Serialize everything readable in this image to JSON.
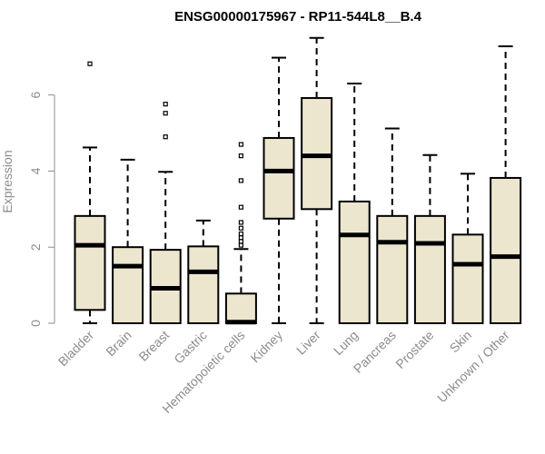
{
  "chart_data": {
    "type": "boxplot",
    "title": "ENSG00000175967 - RP11-544L8__B.4",
    "ylabel": "Expression",
    "xlabel": "",
    "ylim": [
      0,
      7.6
    ],
    "yticks": [
      0,
      2,
      4,
      6
    ],
    "box_fill": "#ede6cf",
    "categories": [
      "Bladder",
      "Brain",
      "Breast",
      "Gastric",
      "Hematopoietic cells",
      "Kidney",
      "Liver",
      "Lung",
      "Pancreas",
      "Prostate",
      "Skin",
      "Unknown / Other"
    ],
    "series": [
      {
        "name": "Bladder",
        "min": 0.0,
        "q1": 0.35,
        "median": 2.05,
        "q3": 2.82,
        "max": 4.62,
        "outliers": [
          6.82
        ]
      },
      {
        "name": "Brain",
        "min": 0.0,
        "q1": 0.0,
        "median": 1.5,
        "q3": 2.0,
        "max": 4.3,
        "outliers": []
      },
      {
        "name": "Breast",
        "min": 0.0,
        "q1": 0.0,
        "median": 0.92,
        "q3": 1.93,
        "max": 3.98,
        "outliers": [
          4.9,
          5.52,
          5.76
        ]
      },
      {
        "name": "Gastric",
        "min": 0.0,
        "q1": 0.0,
        "median": 1.35,
        "q3": 2.02,
        "max": 2.7,
        "outliers": []
      },
      {
        "name": "Hematopoietic cells",
        "min": 0.0,
        "q1": 0.0,
        "median": 0.03,
        "q3": 0.78,
        "max": 1.95,
        "outliers": [
          2.05,
          2.15,
          2.25,
          2.35,
          2.5,
          2.65,
          3.05,
          3.75,
          4.4,
          4.7
        ]
      },
      {
        "name": "Kidney",
        "min": 0.0,
        "q1": 2.75,
        "median": 4.0,
        "q3": 4.87,
        "max": 6.98,
        "outliers": []
      },
      {
        "name": "Liver",
        "min": 0.0,
        "q1": 3.0,
        "median": 4.4,
        "q3": 5.92,
        "max": 7.5,
        "outliers": []
      },
      {
        "name": "Lung",
        "min": 0.0,
        "q1": 0.0,
        "median": 2.32,
        "q3": 3.2,
        "max": 6.3,
        "outliers": []
      },
      {
        "name": "Pancreas",
        "min": 0.0,
        "q1": 0.0,
        "median": 2.13,
        "q3": 2.82,
        "max": 5.12,
        "outliers": []
      },
      {
        "name": "Prostate",
        "min": 0.0,
        "q1": 0.0,
        "median": 2.1,
        "q3": 2.82,
        "max": 4.42,
        "outliers": []
      },
      {
        "name": "Skin",
        "min": 0.0,
        "q1": 0.0,
        "median": 1.55,
        "q3": 2.33,
        "max": 3.93,
        "outliers": []
      },
      {
        "name": "Unknown / Other",
        "min": 0.0,
        "q1": 0.0,
        "median": 1.75,
        "q3": 3.82,
        "max": 7.28,
        "outliers": []
      }
    ]
  }
}
